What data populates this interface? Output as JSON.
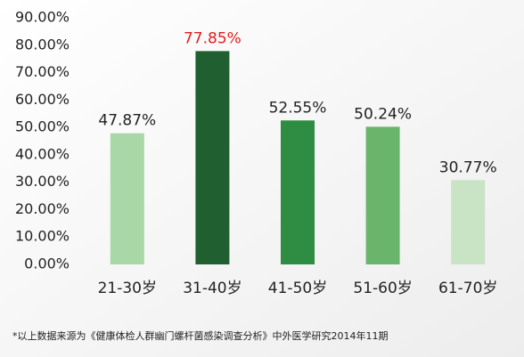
{
  "chart_data": {
    "type": "bar",
    "categories": [
      "21-30岁",
      "31-40岁",
      "41-50岁",
      "51-60岁",
      "61-70岁"
    ],
    "values": [
      47.87,
      77.85,
      52.55,
      50.24,
      30.77
    ],
    "value_labels": [
      "47.87%",
      "77.85%",
      "52.55%",
      "50.24%",
      "30.77%"
    ],
    "colors": [
      "#a9d7a6",
      "#1f5f30",
      "#2f8c43",
      "#6ab56c",
      "#c8e4c4"
    ],
    "value_label_colors": [
      "#222222",
      "#e02020",
      "#222222",
      "#222222",
      "#222222"
    ],
    "ylim": [
      0,
      90
    ],
    "yticks": [
      {
        "value": 0,
        "label": "0.00%"
      },
      {
        "value": 10,
        "label": "10.00%"
      },
      {
        "value": 20,
        "label": "20.00%"
      },
      {
        "value": 30,
        "label": "30.00%"
      },
      {
        "value": 40,
        "label": "40.00%"
      },
      {
        "value": 50,
        "label": "50.00%"
      },
      {
        "value": 60,
        "label": "60.00%"
      },
      {
        "value": 70,
        "label": "70.00%"
      },
      {
        "value": 80,
        "label": "80.00%"
      },
      {
        "value": 90,
        "label": "90.00%"
      }
    ],
    "footnote": "*以上数据来源为《健康体检人群幽门螺杆菌感染调查分析》中外医学研究2014年11期"
  }
}
